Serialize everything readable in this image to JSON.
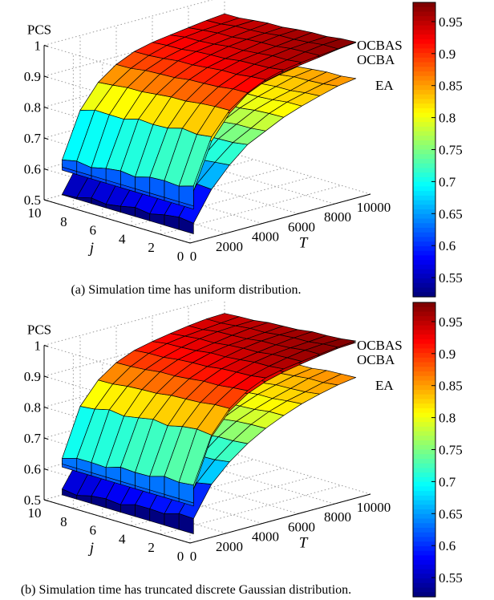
{
  "colorbar": {
    "ticks": [
      "0.95",
      "0.9",
      "0.85",
      "0.8",
      "0.75",
      "0.7",
      "0.65",
      "0.6",
      "0.55"
    ]
  },
  "chart_data": [
    {
      "type": "surface",
      "caption": "(a) Simulation time has uniform distribution.",
      "zlabel": "PCS",
      "xlabel": "j",
      "ylabel": "T",
      "x_ticks": [
        "10",
        "8",
        "6",
        "4",
        "2",
        "0"
      ],
      "y_ticks": [
        "0",
        "2000",
        "4000",
        "6000",
        "8000",
        "10000"
      ],
      "z_ticks": [
        "0.5",
        "0.6",
        "0.7",
        "0.8",
        "0.9",
        "1"
      ],
      "zlim": [
        0.5,
        1
      ],
      "colorbar_range": [
        0.52,
        0.98
      ],
      "j": [
        1,
        2,
        3,
        4,
        5,
        6,
        7,
        8,
        9,
        10
      ],
      "T": [
        1000,
        2000,
        3000,
        4000,
        5000,
        6000,
        7000,
        8000,
        9000,
        10000
      ],
      "series": [
        {
          "name": "OCBAS",
          "values_T_j1": [
            0.65,
            0.8,
            0.87,
            0.91,
            0.935,
            0.95,
            0.96,
            0.968,
            0.974,
            0.978
          ]
        },
        {
          "name": "OCBA",
          "values_T_j1": [
            0.64,
            0.79,
            0.86,
            0.905,
            0.93,
            0.945,
            0.955,
            0.963,
            0.97,
            0.975
          ]
        },
        {
          "name": "EA",
          "values_T_j1": [
            0.54,
            0.63,
            0.69,
            0.74,
            0.77,
            0.8,
            0.82,
            0.835,
            0.85,
            0.86
          ]
        }
      ],
      "grid": true
    },
    {
      "type": "surface",
      "caption": "(b) Simulation time has truncated discrete Gaussian distribution.",
      "zlabel": "PCS",
      "xlabel": "j",
      "ylabel": "T",
      "x_ticks": [
        "10",
        "8",
        "6",
        "4",
        "2",
        "0"
      ],
      "y_ticks": [
        "0",
        "2000",
        "4000",
        "6000",
        "8000",
        "10000"
      ],
      "z_ticks": [
        "0.5",
        "0.6",
        "0.7",
        "0.8",
        "0.9",
        "1"
      ],
      "zlim": [
        0.5,
        1
      ],
      "colorbar_range": [
        0.52,
        0.98
      ],
      "j": [
        1,
        2,
        3,
        4,
        5,
        6,
        7,
        8,
        9,
        10
      ],
      "T": [
        1000,
        2000,
        3000,
        4000,
        5000,
        6000,
        7000,
        8000,
        9000,
        10000
      ],
      "series": [
        {
          "name": "OCBAS",
          "values_T_j1": [
            0.66,
            0.81,
            0.875,
            0.915,
            0.94,
            0.955,
            0.965,
            0.972,
            0.977,
            0.98
          ]
        },
        {
          "name": "OCBA",
          "values_T_j1": [
            0.65,
            0.8,
            0.865,
            0.905,
            0.93,
            0.947,
            0.957,
            0.965,
            0.972,
            0.976
          ]
        },
        {
          "name": "EA",
          "values_T_j1": [
            0.55,
            0.64,
            0.7,
            0.745,
            0.78,
            0.805,
            0.825,
            0.84,
            0.855,
            0.865
          ]
        }
      ],
      "grid": true
    }
  ]
}
